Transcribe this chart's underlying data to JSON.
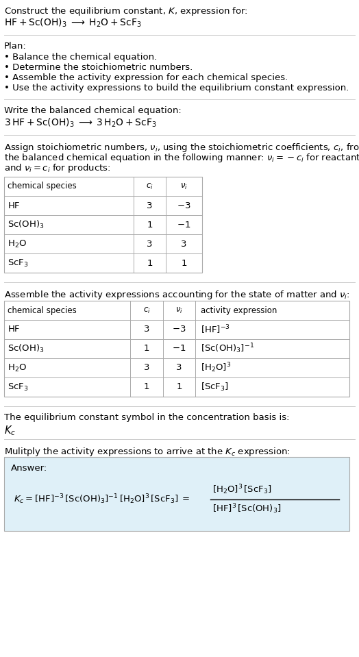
{
  "bg_color": "#ffffff",
  "text_color": "#000000",
  "title_line1": "Construct the equilibrium constant, $K$, expression for:",
  "title_line2": "$\\mathrm{HF + Sc(OH)_3 \\;\\longrightarrow\\; H_2O + ScF_3}$",
  "plan_header": "Plan:",
  "plan_items": [
    "• Balance the chemical equation.",
    "• Determine the stoichiometric numbers.",
    "• Assemble the activity expression for each chemical species.",
    "• Use the activity expressions to build the equilibrium constant expression."
  ],
  "balanced_header": "Write the balanced chemical equation:",
  "balanced_eq": "$\\mathrm{3\\,HF + Sc(OH)_3 \\;\\longrightarrow\\; 3\\,H_2O + ScF_3}$",
  "stoich_header_parts": [
    "Assign stoichiometric numbers, $\\nu_i$, using the stoichiometric coefficients, $c_i$, from",
    "the balanced chemical equation in the following manner: $\\nu_i = -c_i$ for reactants",
    "and $\\nu_i = c_i$ for products:"
  ],
  "table1_headers": [
    "chemical species",
    "$c_i$",
    "$\\nu_i$"
  ],
  "table1_rows": [
    [
      "$\\mathrm{HF}$",
      "3",
      "$-3$"
    ],
    [
      "$\\mathrm{Sc(OH)_3}$",
      "1",
      "$-1$"
    ],
    [
      "$\\mathrm{H_2O}$",
      "3",
      "3"
    ],
    [
      "$\\mathrm{ScF_3}$",
      "1",
      "1"
    ]
  ],
  "activity_header": "Assemble the activity expressions accounting for the state of matter and $\\nu_i$:",
  "table2_headers": [
    "chemical species",
    "$c_i$",
    "$\\nu_i$",
    "activity expression"
  ],
  "table2_rows": [
    [
      "$\\mathrm{HF}$",
      "3",
      "$-3$",
      "$[\\mathrm{HF}]^{-3}$"
    ],
    [
      "$\\mathrm{Sc(OH)_3}$",
      "1",
      "$-1$",
      "$[\\mathrm{Sc(OH)_3}]^{-1}$"
    ],
    [
      "$\\mathrm{H_2O}$",
      "3",
      "3",
      "$[\\mathrm{H_2O}]^{3}$"
    ],
    [
      "$\\mathrm{ScF_3}$",
      "1",
      "1",
      "$[\\mathrm{ScF_3}]$"
    ]
  ],
  "kc_header": "The equilibrium constant symbol in the concentration basis is:",
  "kc_symbol": "$K_c$",
  "multiply_header": "Mulitply the activity expressions to arrive at the $K_c$ expression:",
  "answer_label": "Answer:",
  "answer_line1": "$K_c = [\\mathrm{HF}]^{-3}\\,[\\mathrm{Sc(OH)_3}]^{-1}\\,[\\mathrm{H_2O}]^{3}\\,[\\mathrm{ScF_3}]$",
  "answer_equals": "$=$",
  "answer_frac_num": "$[\\mathrm{H_2O}]^3\\,[\\mathrm{ScF_3}]$",
  "answer_frac_den": "$[\\mathrm{HF}]^3\\,[\\mathrm{Sc(OH)_3}]$",
  "table_border_color": "#aaaaaa",
  "answer_box_color": "#dff0f8",
  "font_size": 9.5,
  "font_size_small": 8.5,
  "line_color": "#cccccc"
}
